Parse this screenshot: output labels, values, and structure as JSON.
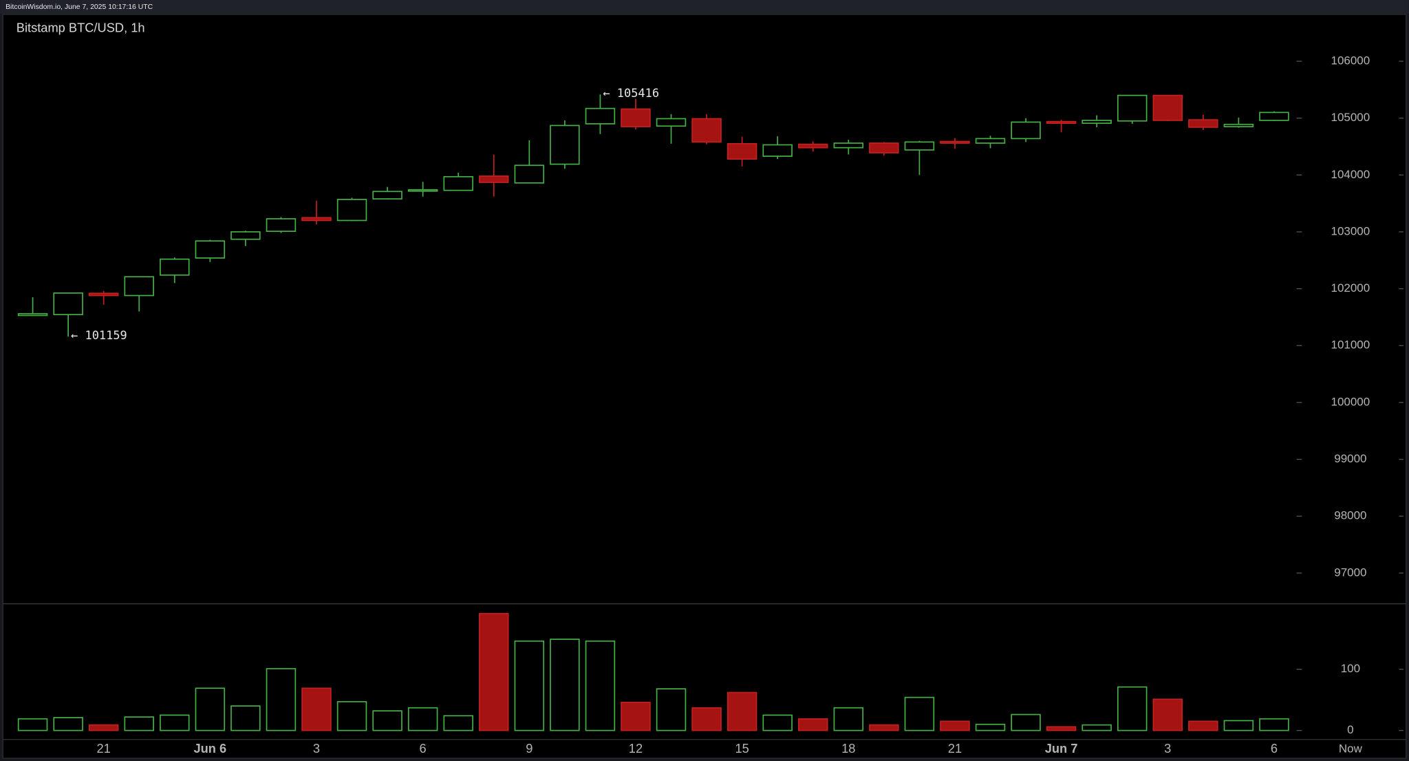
{
  "chart_data": {
    "type": "candlestick",
    "source": "BitcoinWisdom.io, June 7, 2025 10:17:16 UTC",
    "title": "Bitstamp BTC/USD, 1h",
    "categories": [
      null,
      null,
      "21",
      null,
      null,
      "Jun 6",
      null,
      null,
      "3",
      null,
      null,
      "6",
      null,
      null,
      "9",
      null,
      null,
      "12",
      null,
      null,
      "15",
      null,
      null,
      "18",
      null,
      null,
      "21",
      null,
      null,
      "Jun 7",
      null,
      null,
      "3",
      null,
      null,
      "6"
    ],
    "open": [
      101530,
      101545,
      101920,
      101880,
      102240,
      102540,
      102870,
      103010,
      103250,
      103200,
      103580,
      103720,
      103730,
      103980,
      103860,
      104190,
      104900,
      105160,
      104860,
      104990,
      104550,
      104330,
      104540,
      104480,
      104560,
      104440,
      104590,
      104560,
      104640,
      104940,
      104910,
      104950,
      105400,
      104970,
      104850,
      104960
    ],
    "high": [
      101850,
      101930,
      101960,
      102220,
      102550,
      102860,
      103020,
      103260,
      103550,
      103600,
      103790,
      103880,
      104040,
      104360,
      104610,
      104960,
      105416,
      105340,
      105070,
      105070,
      104670,
      104680,
      104590,
      104620,
      104580,
      104600,
      104650,
      104690,
      105000,
      104970,
      105050,
      105400,
      105400,
      105060,
      105010,
      105120
    ],
    "low": [
      101520,
      101159,
      101720,
      101600,
      102100,
      102470,
      102750,
      102980,
      103130,
      103190,
      103570,
      103620,
      103720,
      103620,
      103860,
      104110,
      104720,
      104800,
      104550,
      104540,
      104150,
      104280,
      104410,
      104360,
      104340,
      104000,
      104460,
      104470,
      104580,
      104750,
      104840,
      104900,
      104950,
      104790,
      104830,
      104950
    ],
    "close": [
      101560,
      101924,
      101880,
      102210,
      102520,
      102840,
      103000,
      103230,
      103200,
      103570,
      103710,
      103740,
      103970,
      103870,
      104170,
      104870,
      105170,
      104850,
      104990,
      104580,
      104280,
      104530,
      104480,
      104560,
      104390,
      104580,
      104560,
      104640,
      104930,
      104910,
      104960,
      105400,
      104960,
      104840,
      104890,
      105100
    ],
    "volume": [
      19,
      21,
      9,
      22,
      25,
      69,
      40,
      101,
      69,
      47,
      32,
      37,
      24,
      191,
      146,
      149,
      146,
      46,
      68,
      37,
      62,
      25,
      19,
      37,
      9,
      54,
      15,
      10,
      26,
      6,
      9,
      71,
      51,
      15,
      16,
      19
    ],
    "ylim": [
      96460,
      106840
    ],
    "yticks": [
      97000,
      98000,
      99000,
      100000,
      101000,
      102000,
      103000,
      104000,
      105000,
      106000
    ],
    "volume_ylim": [
      0,
      207
    ],
    "volume_yticks": [
      0,
      100
    ],
    "annotations": [
      {
        "text": "← 105416"
      },
      {
        "text": "← 101159"
      }
    ],
    "now_label": "Now",
    "up_color": "#45b045",
    "down_color": "#a51313"
  }
}
